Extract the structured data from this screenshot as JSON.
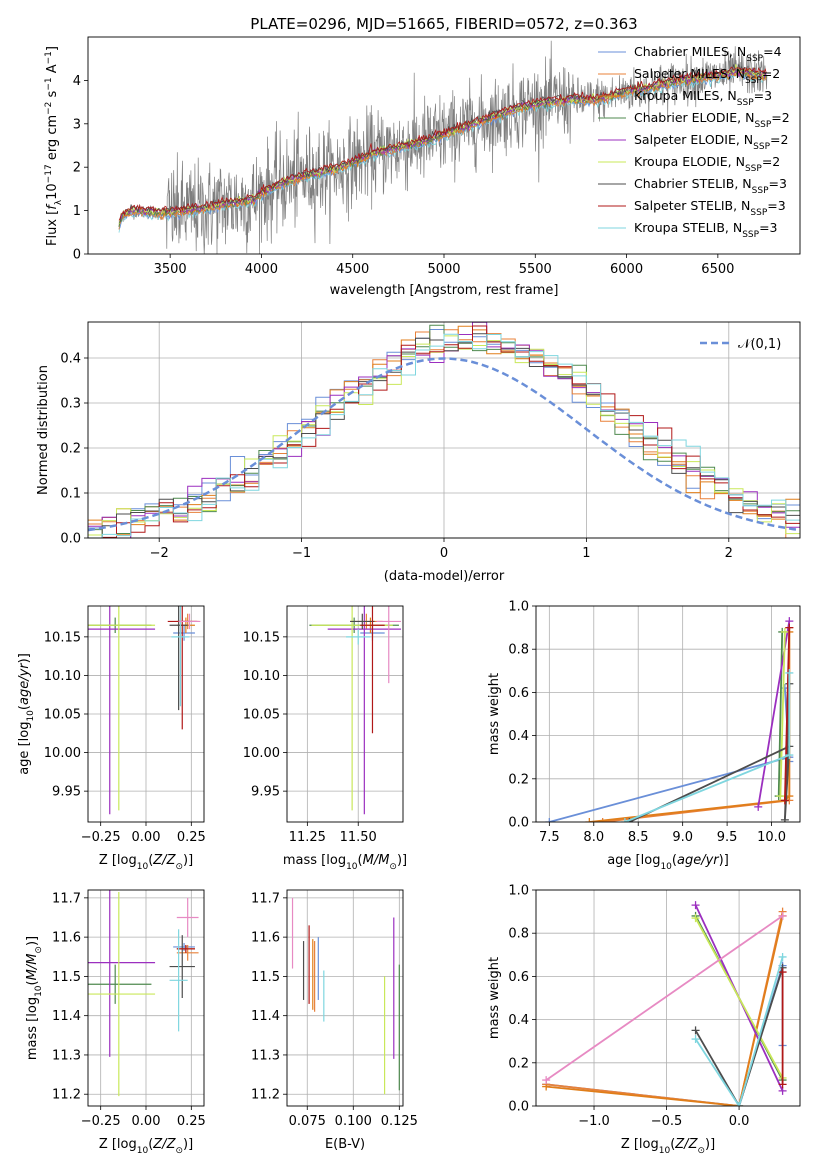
{
  "figure_title": "PLATE=0296, MJD=51665, FIBERID=0572, z=0.363",
  "colors": {
    "Chabrier MILES": "#6a8fd8",
    "Salpeter MILES": "#e8813a",
    "Kroupa MILES": "#e07e1a",
    "Chabrier ELODIE": "#4f8a4f",
    "Salpeter ELODIE": "#9b2fbf",
    "Kroupa ELODIE": "#c9e85a",
    "Chabrier STELIB": "#4d4d4d",
    "Salpeter STELIB": "#b01818",
    "Kroupa STELIB": "#7fd6df",
    "pink": "#e78ac3",
    "gray_data": "#7f7f7f"
  },
  "chart_data": [
    {
      "id": "spectrum",
      "type": "line",
      "title": "PLATE=0296, MJD=51665, FIBERID=0572, z=0.363",
      "xlabel": "wavelength [Angstrom, rest frame]",
      "ylabel": "Flux [f_λ 10^-17 erg cm^-2 s^-1 A^-1]",
      "xlim": [
        3050,
        6950
      ],
      "ylim": [
        0,
        5
      ],
      "xticks": [
        3500,
        4000,
        4500,
        5000,
        5500,
        6000,
        6500
      ],
      "yticks": [
        0,
        1,
        2,
        3,
        4
      ],
      "legend_position": "top-right",
      "legend": [
        "Chabrier MILES, N_SSP=4",
        "Salpeter MILES, N_SSP=2",
        "Kroupa MILES, N_SSP=3",
        "Chabrier ELODIE, N_SSP=2",
        "Salpeter ELODIE, N_SSP=2",
        "Kroupa ELODIE, N_SSP=2",
        "Chabrier STELIB, N_SSP=3",
        "Salpeter STELIB, N_SSP=3",
        "Kroupa STELIB, N_SSP=3"
      ],
      "model_continuum": [
        [
          3220,
          0.65
        ],
        [
          3240,
          0.9
        ],
        [
          3300,
          1.0
        ],
        [
          3400,
          0.95
        ],
        [
          3500,
          0.95
        ],
        [
          3600,
          1.0
        ],
        [
          3700,
          1.05
        ],
        [
          3800,
          1.15
        ],
        [
          3900,
          1.2
        ],
        [
          3960,
          1.25
        ],
        [
          4000,
          1.4
        ],
        [
          4100,
          1.6
        ],
        [
          4200,
          1.75
        ],
        [
          4300,
          1.85
        ],
        [
          4400,
          1.95
        ],
        [
          4500,
          2.1
        ],
        [
          4600,
          2.3
        ],
        [
          4700,
          2.4
        ],
        [
          4800,
          2.5
        ],
        [
          4900,
          2.6
        ],
        [
          5000,
          2.75
        ],
        [
          5100,
          2.9
        ],
        [
          5200,
          3.05
        ],
        [
          5300,
          3.2
        ],
        [
          5400,
          3.35
        ],
        [
          5500,
          3.45
        ],
        [
          5600,
          3.5
        ],
        [
          5700,
          3.55
        ],
        [
          5800,
          3.55
        ],
        [
          5900,
          3.6
        ],
        [
          6000,
          3.75
        ],
        [
          6100,
          3.8
        ],
        [
          6200,
          3.9
        ],
        [
          6300,
          4.0
        ],
        [
          6400,
          4.05
        ],
        [
          6500,
          4.1
        ],
        [
          6600,
          4.2
        ],
        [
          6700,
          4.15
        ],
        [
          6770,
          4.1
        ]
      ]
    },
    {
      "id": "residuals",
      "type": "area",
      "xlabel": "(data-model)/error",
      "ylabel": "Normed distribution",
      "xlim": [
        -2.5,
        2.5
      ],
      "ylim": [
        0,
        0.48
      ],
      "xticks": [
        -2,
        -1,
        0,
        1,
        2
      ],
      "yticks": [
        0.0,
        0.1,
        0.2,
        0.3,
        0.4
      ],
      "legend_position": "top-right",
      "legend": [
        "𝒩(0,1)"
      ],
      "bin_width": 0.1,
      "histogram_peak": 0.44,
      "histogram_center": 0.2,
      "histogram_sigma": 1.05
    },
    {
      "id": "age_vs_Z",
      "type": "scatter",
      "xlabel": "Z [log10(Z/Z⊙)]",
      "ylabel": "age [log10(age/yr)]",
      "xlim": [
        -0.32,
        0.32
      ],
      "ylim": [
        9.91,
        10.19
      ],
      "xticks": [
        -0.25,
        0.0,
        0.25
      ],
      "xtick_labels": [
        "−0.25",
        "0.00",
        "0.25"
      ],
      "yticks": [
        9.95,
        10.0,
        10.05,
        10.1,
        10.15
      ],
      "series": [
        {
          "color": "Chabrier MILES",
          "x": 0.21,
          "xerr": 0.06,
          "y": 10.155,
          "yerr": 0.01
        },
        {
          "color": "Salpeter MILES",
          "x": 0.23,
          "xerr": 0.06,
          "y": 10.17,
          "yerr": 0.01
        },
        {
          "color": "Kroupa MILES",
          "x": 0.22,
          "xerr": 0.05,
          "y": 10.165,
          "yerr": 0.01
        },
        {
          "color": "Chabrier ELODIE",
          "x": -0.17,
          "xerr": 0.2,
          "y": 10.165,
          "yerr": 0.01
        },
        {
          "color": "Salpeter ELODIE",
          "x": -0.2,
          "xerr": 0.25,
          "y": 10.16,
          "yerr": 0.24
        },
        {
          "color": "Kroupa ELODIE",
          "x": -0.15,
          "xerr": 0.2,
          "y": 10.165,
          "yerr": 0.24
        },
        {
          "color": "Chabrier STELIB",
          "x": 0.18,
          "xerr": 0.05,
          "y": 10.165,
          "yerr": 0.11
        },
        {
          "color": "Salpeter STELIB",
          "x": 0.2,
          "xerr": 0.08,
          "y": 10.17,
          "yerr": 0.14
        },
        {
          "color": "Kroupa STELIB",
          "x": 0.19,
          "xerr": 0.05,
          "y": 10.15,
          "yerr": 0.09
        },
        {
          "color": "pink",
          "x": 0.24,
          "xerr": 0.06,
          "y": 10.17,
          "yerr": 0.01
        }
      ]
    },
    {
      "id": "age_vs_mass",
      "type": "scatter",
      "xlabel": "mass [log10(M/M⊙)]",
      "ylabel": "",
      "xlim": [
        11.15,
        11.72
      ],
      "ylim": [
        9.91,
        10.19
      ],
      "xticks": [
        11.25,
        11.5
      ],
      "xtick_labels": [
        "11.25",
        "11.50"
      ],
      "yticks": [
        9.95,
        10.0,
        10.05,
        10.1,
        10.15
      ],
      "series": [
        {
          "color": "Chabrier MILES",
          "x": 11.57,
          "xerr": 0.06,
          "y": 10.155,
          "yerr": 0.01
        },
        {
          "color": "Salpeter MILES",
          "x": 11.54,
          "xerr": 0.08,
          "y": 10.17,
          "yerr": 0.01
        },
        {
          "color": "Kroupa MILES",
          "x": 11.56,
          "xerr": 0.06,
          "y": 10.165,
          "yerr": 0.01
        },
        {
          "color": "Chabrier ELODIE",
          "x": 11.48,
          "xerr": 0.22,
          "y": 10.165,
          "yerr": 0.01
        },
        {
          "color": "Salpeter ELODIE",
          "x": 11.53,
          "xerr": 0.18,
          "y": 10.16,
          "yerr": 0.24
        },
        {
          "color": "Kroupa ELODIE",
          "x": 11.47,
          "xerr": 0.2,
          "y": 10.165,
          "yerr": 0.24
        },
        {
          "color": "Chabrier STELIB",
          "x": 11.52,
          "xerr": 0.06,
          "y": 10.17,
          "yerr": 0.01
        },
        {
          "color": "Salpeter STELIB",
          "x": 11.57,
          "xerr": 0.06,
          "y": 10.165,
          "yerr": 0.14
        },
        {
          "color": "Kroupa STELIB",
          "x": 11.5,
          "xerr": 0.06,
          "y": 10.15,
          "yerr": 0.01
        },
        {
          "color": "pink",
          "x": 11.65,
          "xerr": 0.06,
          "y": 10.17,
          "yerr": 0.08
        }
      ]
    },
    {
      "id": "weight_vs_age",
      "type": "line",
      "xlabel": "age [log10(age/yr)]",
      "ylabel": "mass weight",
      "xlim": [
        7.35,
        10.32
      ],
      "ylim": [
        0,
        1
      ],
      "xticks": [
        7.5,
        8.0,
        8.5,
        9.0,
        9.5,
        10.0
      ],
      "yticks": [
        0.0,
        0.2,
        0.4,
        0.6,
        0.8,
        1.0
      ],
      "series": [
        {
          "color": "Chabrier MILES",
          "x": [
            7.5,
            10.2,
            10.15,
            10.2
          ],
          "y": [
            0.0,
            0.3,
            0.62,
            0.28
          ]
        },
        {
          "color": "Salpeter MILES",
          "x": [
            8.1,
            10.2,
            10.2
          ],
          "y": [
            0.0,
            0.1,
            0.9
          ]
        },
        {
          "color": "Kroupa MILES",
          "x": [
            7.95,
            10.15,
            10.2,
            10.2
          ],
          "y": [
            0.0,
            0.1,
            0.12,
            0.88
          ]
        },
        {
          "color": "Chabrier ELODIE",
          "x": [
            10.08,
            10.12
          ],
          "y": [
            0.12,
            0.88
          ]
        },
        {
          "color": "Salpeter ELODIE",
          "x": [
            9.85,
            10.2
          ],
          "y": [
            0.07,
            0.93
          ]
        },
        {
          "color": "Kroupa ELODIE",
          "x": [
            10.1,
            10.15
          ],
          "y": [
            0.12,
            0.88
          ]
        },
        {
          "color": "Chabrier STELIB",
          "x": [
            8.4,
            10.2,
            10.15,
            10.2
          ],
          "y": [
            0.0,
            0.35,
            0.01,
            0.64
          ]
        },
        {
          "color": "Salpeter STELIB",
          "x": [
            10.15,
            10.2
          ],
          "y": [
            0.1,
            0.9
          ]
        },
        {
          "color": "Kroupa STELIB",
          "x": [
            8.35,
            10.2,
            10.2
          ],
          "y": [
            0.0,
            0.31,
            0.69
          ]
        }
      ]
    },
    {
      "id": "mass_vs_Z",
      "type": "scatter",
      "xlabel": "Z [log10(Z/Z⊙)]",
      "ylabel": "mass [log10(M/M⊙)]",
      "xlim": [
        -0.32,
        0.32
      ],
      "ylim": [
        11.17,
        11.72
      ],
      "xticks": [
        -0.25,
        0.0,
        0.25
      ],
      "xtick_labels": [
        "−0.25",
        "0.00",
        "0.25"
      ],
      "yticks": [
        11.2,
        11.3,
        11.4,
        11.5,
        11.6,
        11.7
      ],
      "series": [
        {
          "color": "Chabrier MILES",
          "x": 0.21,
          "xerr": 0.06,
          "y": 11.575,
          "yerr": 0.01
        },
        {
          "color": "Salpeter MILES",
          "x": 0.23,
          "xerr": 0.06,
          "y": 11.56,
          "yerr": 0.02
        },
        {
          "color": "Kroupa MILES",
          "x": 0.22,
          "xerr": 0.05,
          "y": 11.57,
          "yerr": 0.01
        },
        {
          "color": "Chabrier ELODIE",
          "x": -0.17,
          "xerr": 0.2,
          "y": 11.48,
          "yerr": 0.05
        },
        {
          "color": "Salpeter ELODIE",
          "x": -0.2,
          "xerr": 0.25,
          "y": 11.535,
          "yerr": 0.24
        },
        {
          "color": "Kroupa ELODIE",
          "x": -0.15,
          "xerr": 0.2,
          "y": 11.455,
          "yerr": 0.26
        },
        {
          "color": "Chabrier STELIB",
          "x": 0.2,
          "xerr": 0.07,
          "y": 11.525,
          "yerr": 0.08
        },
        {
          "color": "Salpeter STELIB",
          "x": 0.22,
          "xerr": 0.05,
          "y": 11.57,
          "yerr": 0.01
        },
        {
          "color": "Kroupa STELIB",
          "x": 0.18,
          "xerr": 0.05,
          "y": 11.49,
          "yerr": 0.13
        },
        {
          "color": "pink",
          "x": 0.23,
          "xerr": 0.06,
          "y": 11.65,
          "yerr": 0.05
        }
      ]
    },
    {
      "id": "mass_vs_ebv",
      "type": "scatter",
      "xlabel": "E(B-V)",
      "ylabel": "",
      "xlim": [
        0.064,
        0.127
      ],
      "ylim": [
        11.17,
        11.72
      ],
      "xticks": [
        0.075,
        0.1,
        0.125
      ],
      "xtick_labels": [
        "0.075",
        "0.100",
        "0.125"
      ],
      "yticks": [
        11.2,
        11.3,
        11.4,
        11.5,
        11.6,
        11.7
      ],
      "series": [
        {
          "color": "Chabrier MILES",
          "x": 0.081,
          "y": 11.52,
          "yerr": 0.08
        },
        {
          "color": "Salpeter MILES",
          "x": 0.079,
          "y": 11.5,
          "yerr": 0.09
        },
        {
          "color": "Kroupa MILES",
          "x": 0.078,
          "y": 11.505,
          "yerr": 0.09
        },
        {
          "color": "Chabrier ELODIE",
          "x": 0.125,
          "y": 11.37,
          "yerr": 0.16
        },
        {
          "color": "Salpeter ELODIE",
          "x": 0.122,
          "y": 11.47,
          "yerr": 0.18
        },
        {
          "color": "Kroupa ELODIE",
          "x": 0.117,
          "y": 11.35,
          "yerr": 0.15
        },
        {
          "color": "Chabrier STELIB",
          "x": 0.073,
          "y": 11.515,
          "yerr": 0.075
        },
        {
          "color": "Salpeter STELIB",
          "x": 0.076,
          "y": 11.53,
          "yerr": 0.1
        },
        {
          "color": "Kroupa STELIB",
          "x": 0.084,
          "y": 11.45,
          "yerr": 0.065
        },
        {
          "color": "pink",
          "x": 0.067,
          "y": 11.61,
          "yerr": 0.09
        }
      ]
    },
    {
      "id": "weight_vs_Z",
      "type": "line",
      "xlabel": "Z [log10(Z/Z⊙)]",
      "ylabel": "mass weight",
      "xlim": [
        -1.4,
        0.42
      ],
      "ylim": [
        0,
        1
      ],
      "xticks": [
        -1.0,
        -0.5,
        0.0
      ],
      "xtick_labels": [
        "−1.0",
        "−0.5",
        "0.0"
      ],
      "yticks": [
        0.0,
        0.2,
        0.4,
        0.6,
        0.8,
        1.0
      ],
      "series": [
        {
          "color": "Chabrier MILES",
          "x": [
            -1.33,
            0.0,
            0.3,
            0.3
          ],
          "y": [
            0.1,
            0.0,
            0.65,
            0.28
          ]
        },
        {
          "color": "Salpeter MILES",
          "x": [
            -1.33,
            0.0,
            0.3
          ],
          "y": [
            0.1,
            0.0,
            0.9
          ]
        },
        {
          "color": "Kroupa MILES",
          "x": [
            -1.33,
            0.0,
            0.3
          ],
          "y": [
            0.09,
            0.0,
            0.88
          ]
        },
        {
          "color": "Chabrier ELODIE",
          "x": [
            -0.3,
            0.3
          ],
          "y": [
            0.88,
            0.12
          ]
        },
        {
          "color": "Salpeter ELODIE",
          "x": [
            -0.3,
            0.3
          ],
          "y": [
            0.93,
            0.07
          ]
        },
        {
          "color": "Kroupa ELODIE",
          "x": [
            -0.3,
            0.3
          ],
          "y": [
            0.87,
            0.13
          ]
        },
        {
          "color": "Chabrier STELIB",
          "x": [
            -0.3,
            0.0,
            0.3
          ],
          "y": [
            0.35,
            0.0,
            0.64
          ]
        },
        {
          "color": "Salpeter STELIB",
          "x": [
            0.3,
            0.3
          ],
          "y": [
            0.62,
            0.1
          ]
        },
        {
          "color": "Kroupa STELIB",
          "x": [
            -0.3,
            0.0,
            0.3
          ],
          "y": [
            0.31,
            0.0,
            0.69
          ]
        },
        {
          "color": "pink",
          "x": [
            -1.33,
            0.3
          ],
          "y": [
            0.12,
            0.88
          ]
        }
      ]
    }
  ]
}
